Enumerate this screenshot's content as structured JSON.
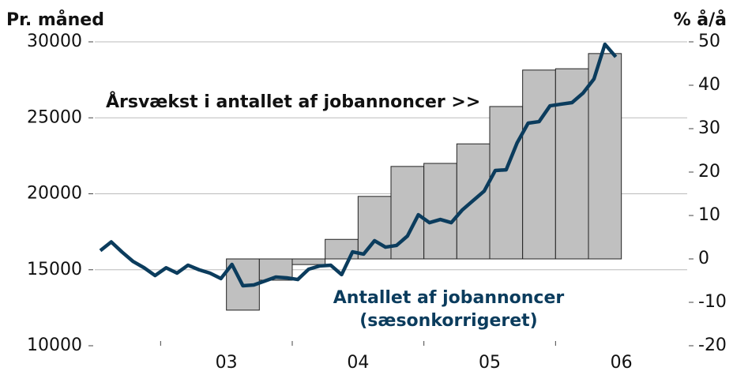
{
  "chart_data": {
    "type": "bar-line",
    "ylabel": "Pr. måned",
    "y2label": "% å/å",
    "annotations": [
      "Årsvækst i antallet af jobannoncer >>",
      "Antallet af jobannoncer",
      "(sæsonkorrigeret)"
    ],
    "xlim": [
      2002.5,
      2007
    ],
    "xticks": [
      {
        "value": 2003.5,
        "label": "03"
      },
      {
        "value": 2004.5,
        "label": "04"
      },
      {
        "value": 2005.5,
        "label": "05"
      },
      {
        "value": 2006.5,
        "label": "06"
      }
    ],
    "xminorticks": [
      2003,
      2004,
      2005,
      2006
    ],
    "ylim": [
      10000,
      30000
    ],
    "yticks": [
      10000,
      15000,
      20000,
      25000,
      30000
    ],
    "y2lim": [
      -20,
      50
    ],
    "y2ticks": [
      -20,
      -10,
      0,
      10,
      20,
      30,
      40,
      50
    ],
    "grid": true,
    "series": [
      {
        "name": "Årsvækst i antallet af jobannoncer",
        "type": "bar",
        "axis": "y2",
        "color": "#c0c0c0",
        "x": [
          2003.625,
          2003.875,
          2004.125,
          2004.375,
          2004.625,
          2004.875,
          2005.125,
          2005.375,
          2005.625,
          2005.875,
          2006.125,
          2006.375
        ],
        "values": [
          -11.8,
          -4.9,
          -1.3,
          4.5,
          14.4,
          21.3,
          22,
          26.5,
          35.1,
          43.5,
          43.8,
          47.3
        ]
      },
      {
        "name": "Antallet af jobannoncer",
        "type": "line",
        "axis": "y",
        "color": "#0b3c5d",
        "x": [
          2002.542,
          2002.625,
          2002.708,
          2002.792,
          2002.875,
          2002.958,
          2003.042,
          2003.125,
          2003.208,
          2003.292,
          2003.375,
          2003.458,
          2003.542,
          2003.625,
          2003.708,
          2003.792,
          2003.875,
          2003.958,
          2004.042,
          2004.125,
          2004.208,
          2004.292,
          2004.375,
          2004.458,
          2004.542,
          2004.625,
          2004.708,
          2004.792,
          2004.875,
          2004.958,
          2005.042,
          2005.125,
          2005.208,
          2005.292,
          2005.375,
          2005.458,
          2005.542,
          2005.625,
          2005.708,
          2005.792,
          2005.875,
          2005.958,
          2006.042,
          2006.125,
          2006.208,
          2006.292,
          2006.375,
          2006.458
        ],
        "values": [
          16260,
          16830,
          16160,
          15540,
          15130,
          14620,
          15130,
          14780,
          15300,
          15000,
          14780,
          14420,
          15350,
          13950,
          14000,
          14260,
          14520,
          14470,
          14360,
          15040,
          15250,
          15300,
          14680,
          16180,
          16030,
          16910,
          16490,
          16600,
          17220,
          18620,
          18100,
          18310,
          18100,
          18940,
          19560,
          20180,
          21530,
          21580,
          23350,
          24650,
          24750,
          25790,
          25900,
          26000,
          26620,
          27560,
          29840,
          29010
        ]
      }
    ]
  }
}
